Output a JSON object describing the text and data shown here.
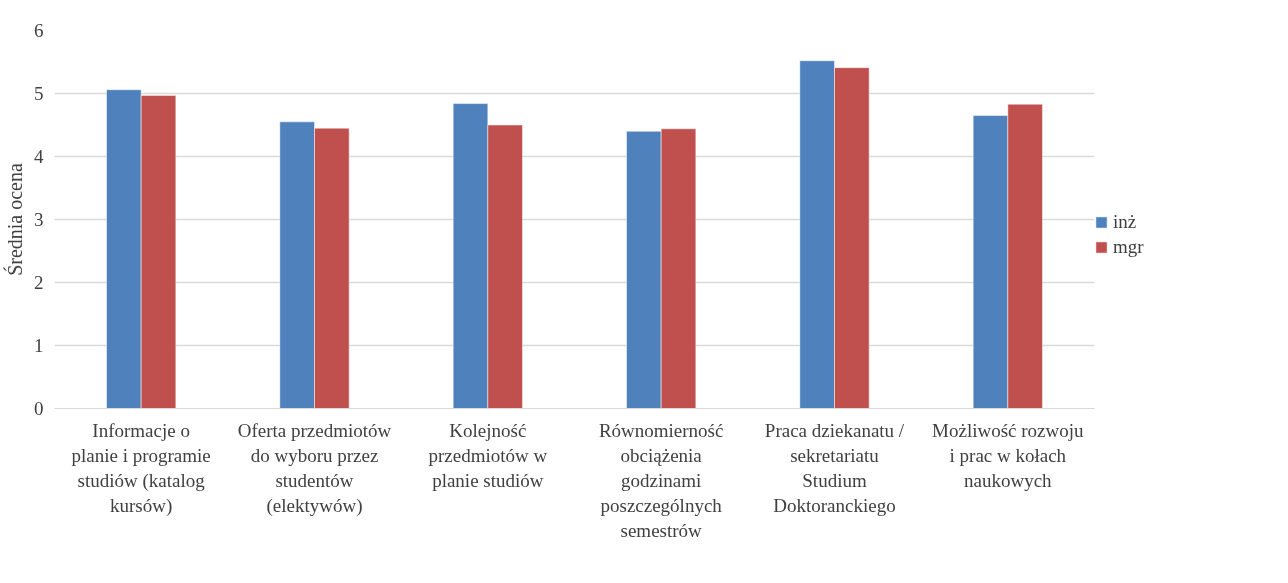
{
  "chart_data": {
    "type": "bar",
    "ylabel": "Średnia ocena",
    "categories": [
      "Informacje o planie i programie studiów (katalog kursów)",
      "Oferta przedmiotów do wyboru przez studentów (elektywów)",
      "Kolejność przedmiotów w planie studiów",
      "Równomierność obciążenia godzinami poszczególnych semestrów",
      "Praca dziekanatu / sekretariatu Studium Doktoranckiego",
      "Możliwość rozwoju i prac w kołach naukowych"
    ],
    "series": [
      {
        "name": "inż",
        "color": "#4f81bd",
        "values": [
          5.06,
          4.55,
          4.84,
          4.4,
          5.52,
          4.65
        ]
      },
      {
        "name": "mgr",
        "color": "#c0504d",
        "values": [
          4.97,
          4.45,
          4.5,
          4.44,
          5.41,
          4.83
        ]
      }
    ],
    "ylim": [
      0,
      6
    ],
    "yticks": [
      0,
      1,
      2,
      3,
      4,
      5,
      6
    ],
    "grid": "y",
    "legend": "right"
  }
}
